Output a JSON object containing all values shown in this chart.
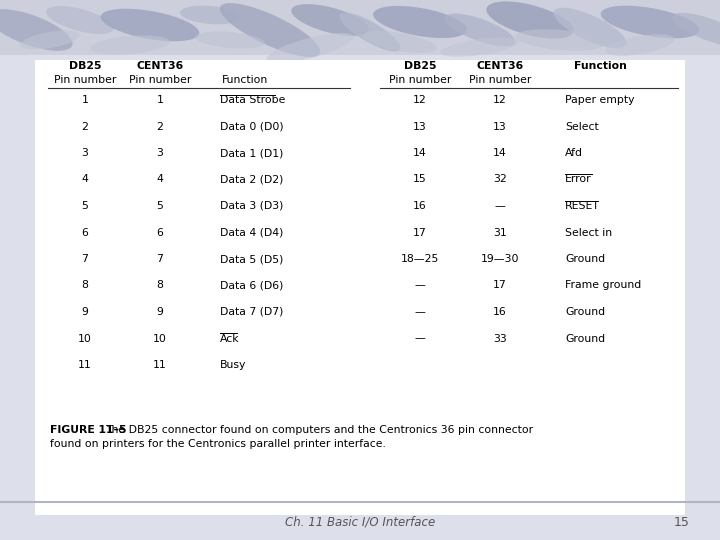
{
  "bg_color": "#dde0ea",
  "white_area": "#ffffff",
  "title_text": "Ch. 11 Basic I/O Interface",
  "page_number": "15",
  "caption_bold": "FIGURE 11–5",
  "caption_normal": "   The DB25 connector found on computers and the Centronics 36 pin connector",
  "caption_line2": "found on printers for the Centronics parallel printer interface.",
  "left_table": [
    [
      "1",
      "1",
      "Data Strobe",
      true,
      false
    ],
    [
      "2",
      "2",
      "Data 0 (D0)",
      false,
      false
    ],
    [
      "3",
      "3",
      "Data 1 (D1)",
      false,
      false
    ],
    [
      "4",
      "4",
      "Data 2 (D2)",
      false,
      false
    ],
    [
      "5",
      "5",
      "Data 3 (D3)",
      false,
      false
    ],
    [
      "6",
      "6",
      "Data 4 (D4)",
      false,
      false
    ],
    [
      "7",
      "7",
      "Data 5 (D5)",
      false,
      false
    ],
    [
      "8",
      "8",
      "Data 6 (D6)",
      false,
      false
    ],
    [
      "9",
      "9",
      "Data 7 (D7)",
      false,
      false
    ],
    [
      "10",
      "10",
      "Ack",
      false,
      true
    ],
    [
      "11",
      "11",
      "Busy",
      false,
      false
    ]
  ],
  "right_table": [
    [
      "12",
      "12",
      "Paper empty",
      false,
      false
    ],
    [
      "13",
      "13",
      "Select",
      false,
      false
    ],
    [
      "14",
      "14",
      "Afd",
      false,
      false
    ],
    [
      "15",
      "32",
      "Error",
      false,
      true
    ],
    [
      "16",
      "—",
      "RESET",
      false,
      true
    ],
    [
      "17",
      "31",
      "Select in",
      false,
      false
    ],
    [
      "18—25",
      "19—30",
      "Ground",
      false,
      false
    ],
    [
      "—",
      "17",
      "Frame ground",
      false,
      false
    ],
    [
      "—",
      "16",
      "Ground",
      false,
      false
    ],
    [
      "—",
      "33",
      "Ground",
      false,
      false
    ]
  ]
}
